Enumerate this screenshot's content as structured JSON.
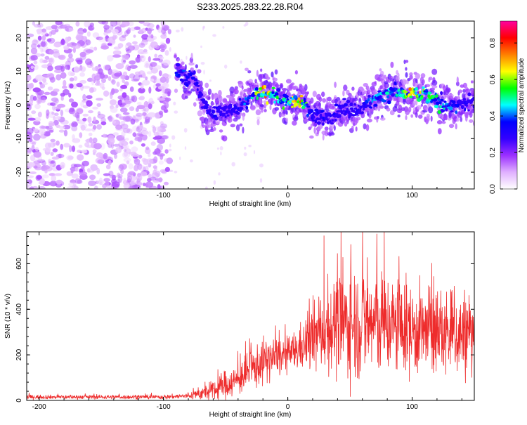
{
  "title": "S233.2025.283.22.28.R04",
  "spectrogram": {
    "type": "heatmap",
    "xlabel": "Height of straight line (km)",
    "ylabel": "Frequency (Hz)",
    "xlim": [
      -210,
      150
    ],
    "ylim": [
      -25,
      25
    ],
    "xticks": [
      -200,
      -100,
      0,
      100
    ],
    "yticks": [
      -20,
      -10,
      0,
      10,
      20
    ],
    "colorbar": {
      "label": "Normalized spectral amplitude",
      "range": [
        0,
        0.92
      ],
      "ticks": [
        "0.0",
        "0.2",
        "0.4",
        "0.6",
        "0.8"
      ],
      "tick_values": [
        0,
        0.2,
        0.4,
        0.6,
        0.8
      ],
      "colors": [
        "#ffffff",
        "#e0b0ff",
        "#9b30ff",
        "#3300ff",
        "#0000ff",
        "#00ffff",
        "#00ff00",
        "#ffff00",
        "#ff8000",
        "#ff0000",
        "#ff00a0"
      ]
    },
    "noise_region_x": [
      -210,
      -95
    ],
    "signal_trace": {
      "x": [
        -90,
        -80,
        -75,
        -70,
        -65,
        -60,
        -50,
        -40,
        -30,
        -20,
        -10,
        0,
        10,
        15,
        20,
        30,
        40,
        50,
        60,
        70,
        80,
        90,
        100,
        110,
        120,
        130,
        140,
        150
      ],
      "freq_hz": [
        10,
        8,
        8,
        2,
        -1,
        -2,
        -2,
        -1,
        3,
        4,
        3,
        1,
        1,
        0,
        -3,
        -4,
        -2,
        -1,
        -1,
        2,
        4,
        4,
        3,
        3,
        1,
        0,
        0,
        1
      ],
      "peak_amplitude": [
        0.4,
        0.45,
        0.3,
        0.35,
        0.3,
        0.35,
        0.3,
        0.35,
        0.5,
        0.85,
        0.55,
        0.6,
        0.8,
        0.6,
        0.3,
        0.4,
        0.35,
        0.3,
        0.35,
        0.45,
        0.55,
        0.5,
        0.8,
        0.6,
        0.55,
        0.45,
        0.35,
        0.3
      ]
    }
  },
  "snr": {
    "type": "line",
    "xlabel": "Height of straight line (km)",
    "ylabel": "SNR (10 * v/v)",
    "xlim": [
      -210,
      150
    ],
    "ylim": [
      0,
      740
    ],
    "xticks": [
      -200,
      -100,
      0,
      100
    ],
    "yticks": [
      0,
      200,
      400,
      600
    ],
    "color": "#ee2c2c",
    "envelope": {
      "x": [
        -210,
        -150,
        -100,
        -80,
        -60,
        -50,
        -40,
        -30,
        -20,
        -10,
        0,
        10,
        20,
        30,
        40,
        50,
        60,
        70,
        80,
        90,
        100,
        110,
        120,
        130,
        140,
        150
      ],
      "mean": [
        15,
        15,
        15,
        20,
        40,
        70,
        90,
        130,
        170,
        190,
        200,
        230,
        270,
        310,
        330,
        340,
        340,
        340,
        330,
        320,
        310,
        300,
        300,
        290,
        290,
        290
      ],
      "spread": [
        8,
        8,
        8,
        12,
        40,
        60,
        60,
        80,
        90,
        80,
        70,
        90,
        130,
        160,
        200,
        220,
        220,
        220,
        200,
        190,
        180,
        180,
        170,
        170,
        180,
        170
      ]
    }
  }
}
